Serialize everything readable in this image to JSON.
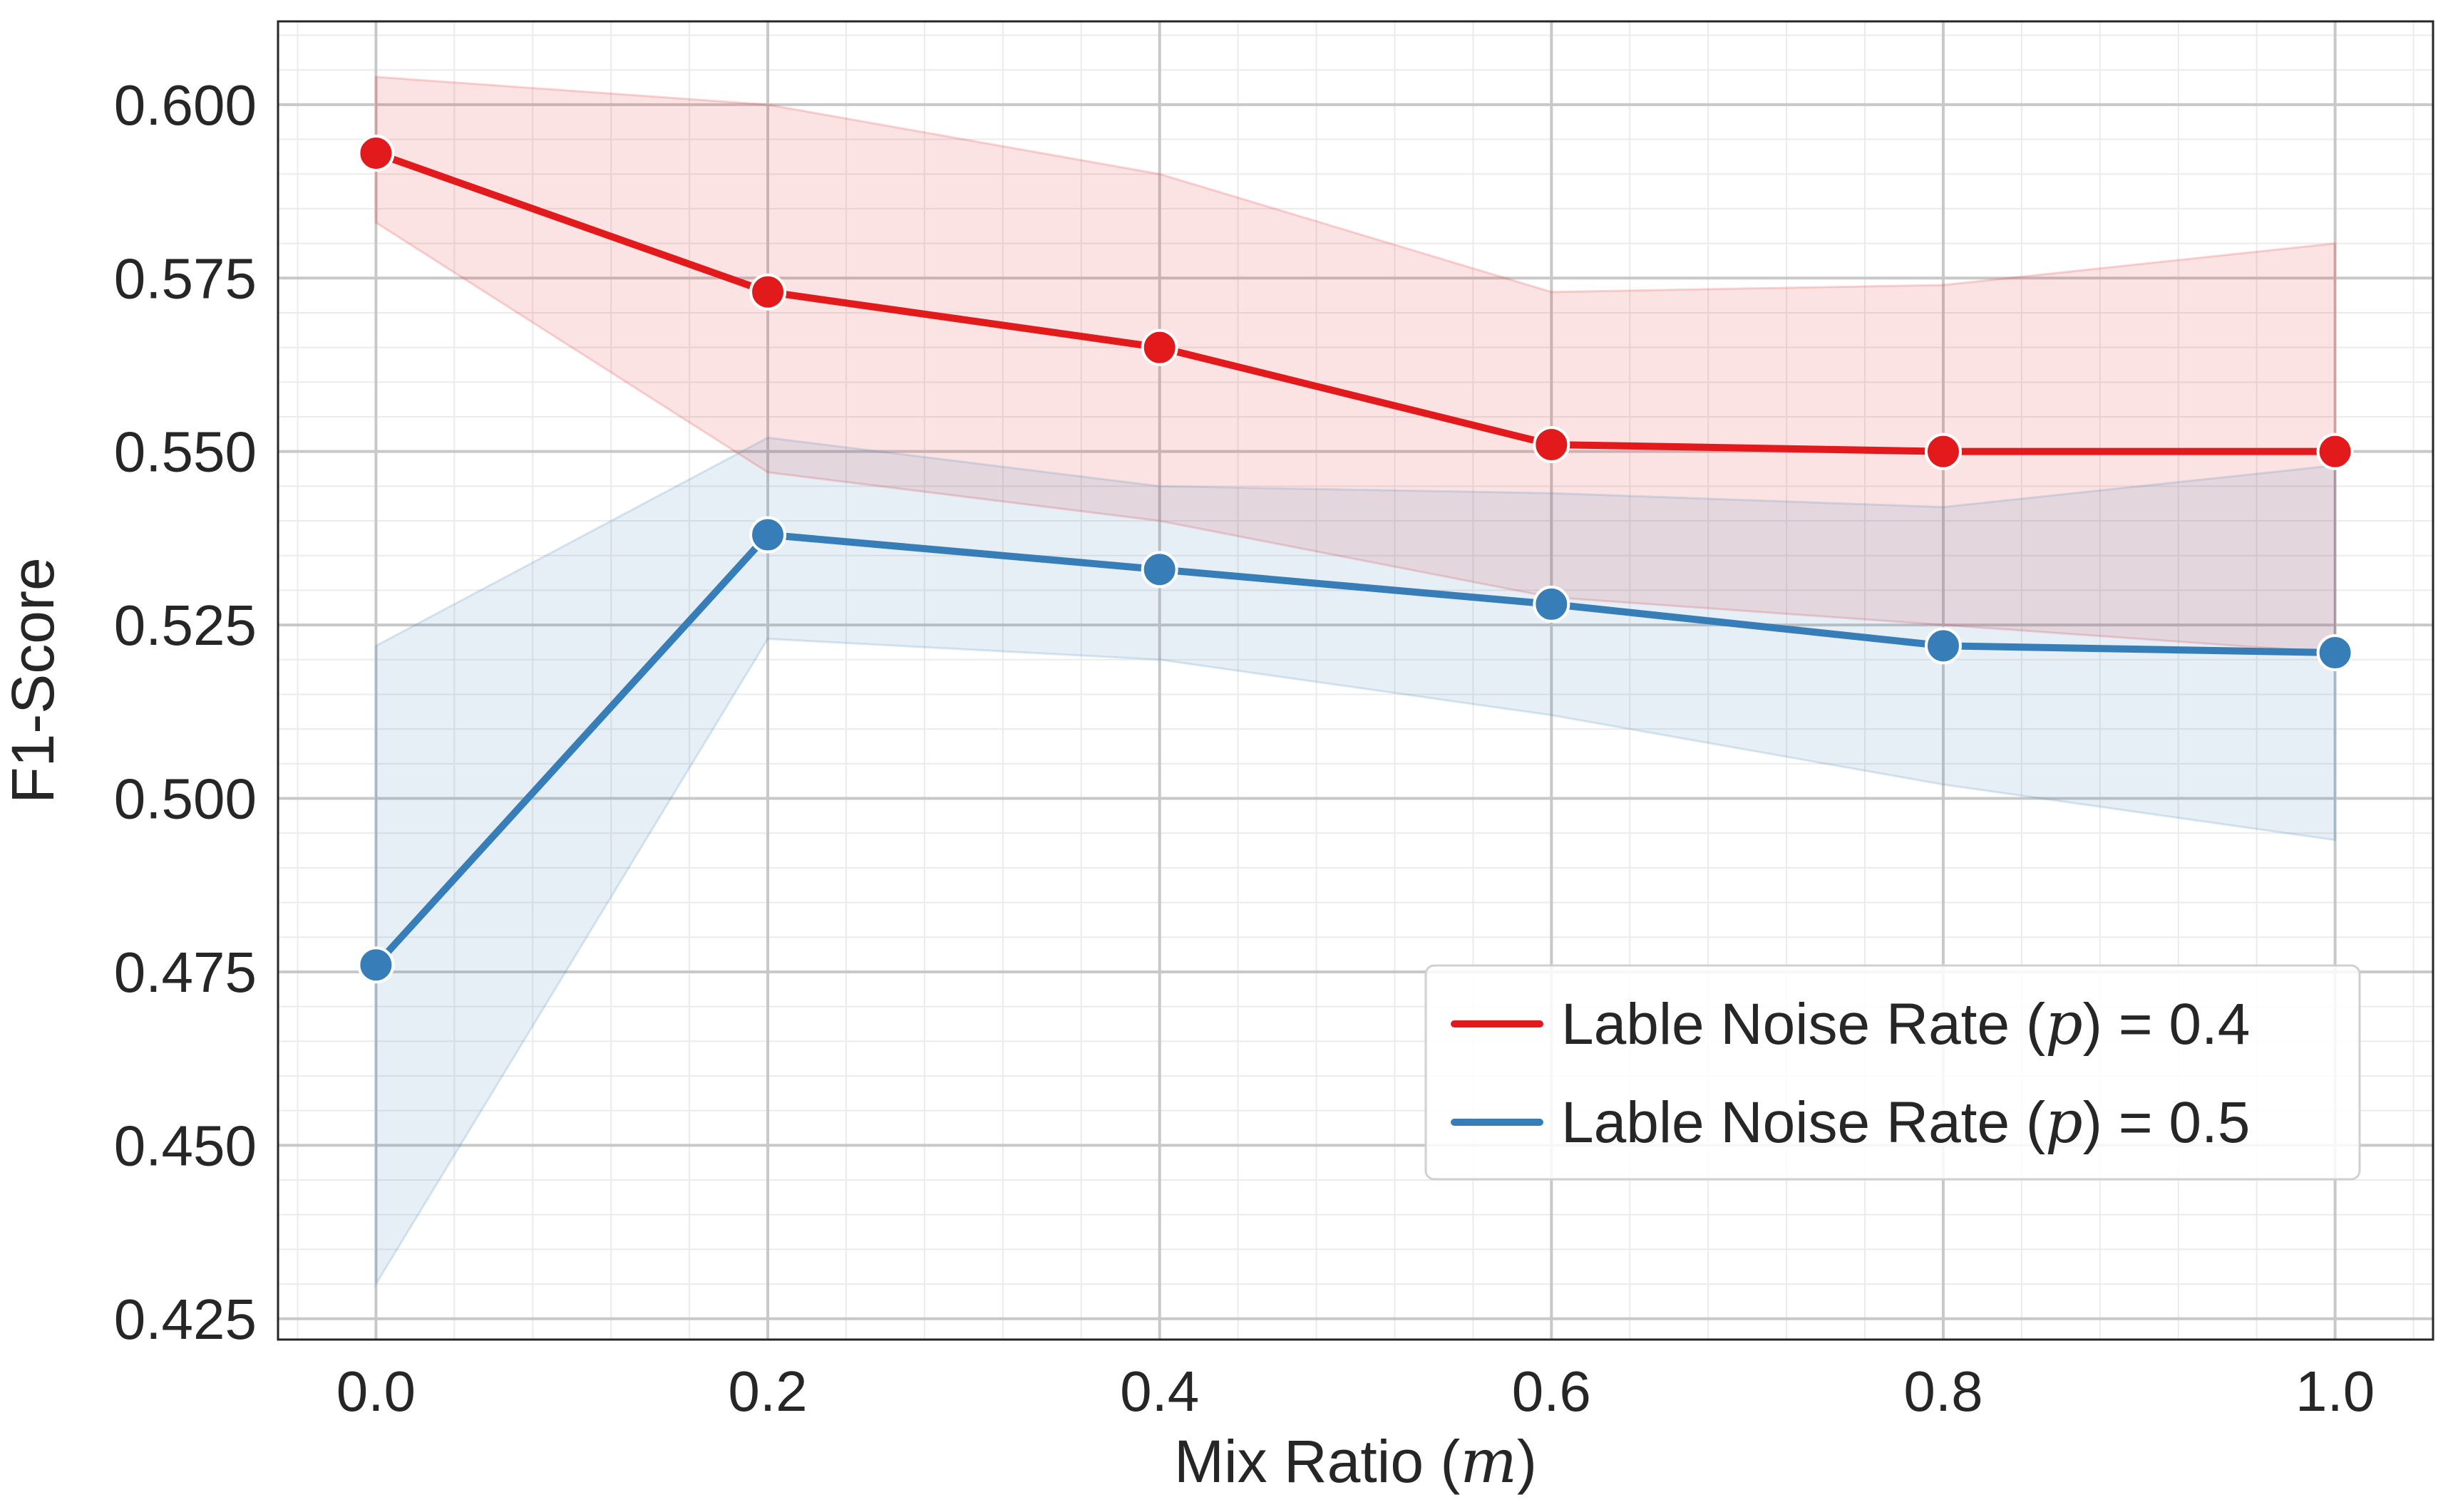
{
  "chart_data": {
    "type": "line",
    "title": "",
    "xlabel": "Mix Ratio (m)",
    "xlabel_parts": {
      "prefix": "Mix Ratio (",
      "var": "m",
      "suffix": ")"
    },
    "ylabel": "F1-Score",
    "xlim": [
      -0.05,
      1.05
    ],
    "ylim": [
      0.422,
      0.612
    ],
    "x_ticks": [
      0.0,
      0.2,
      0.4,
      0.6,
      0.8,
      1.0
    ],
    "x_tick_labels": [
      "0.0",
      "0.2",
      "0.4",
      "0.6",
      "0.8",
      "1.0"
    ],
    "y_ticks": [
      0.425,
      0.45,
      0.475,
      0.5,
      0.525,
      0.55,
      0.575,
      0.6
    ],
    "y_tick_labels": [
      "0.425",
      "0.450",
      "0.475",
      "0.500",
      "0.525",
      "0.550",
      "0.575",
      "0.600"
    ],
    "grid": true,
    "minor_grid": true,
    "legend_position": "lower-right",
    "x": [
      0.0,
      0.2,
      0.4,
      0.6,
      0.8,
      1.0
    ],
    "series": [
      {
        "name": "Lable Noise Rate (p) = 0.4",
        "legend_parts": {
          "prefix": "Lable Noise Rate (",
          "var": "p",
          "suffix": ") = 0.4"
        },
        "color": "#e31a1c",
        "values": [
          0.593,
          0.573,
          0.565,
          0.551,
          0.55,
          0.55
        ],
        "lower": [
          0.583,
          0.547,
          0.54,
          0.529,
          0.525,
          0.521
        ],
        "upper": [
          0.604,
          0.6,
          0.59,
          0.573,
          0.574,
          0.58
        ]
      },
      {
        "name": "Lable Noise Rate (p) = 0.5",
        "legend_parts": {
          "prefix": "Lable Noise Rate (",
          "var": "p",
          "suffix": ") = 0.5"
        },
        "color": "#377eb8",
        "values": [
          0.476,
          0.538,
          0.533,
          0.528,
          0.522,
          0.521
        ],
        "lower": [
          0.43,
          0.523,
          0.52,
          0.512,
          0.502,
          0.494
        ],
        "upper": [
          0.522,
          0.552,
          0.545,
          0.544,
          0.542,
          0.548
        ]
      }
    ]
  }
}
